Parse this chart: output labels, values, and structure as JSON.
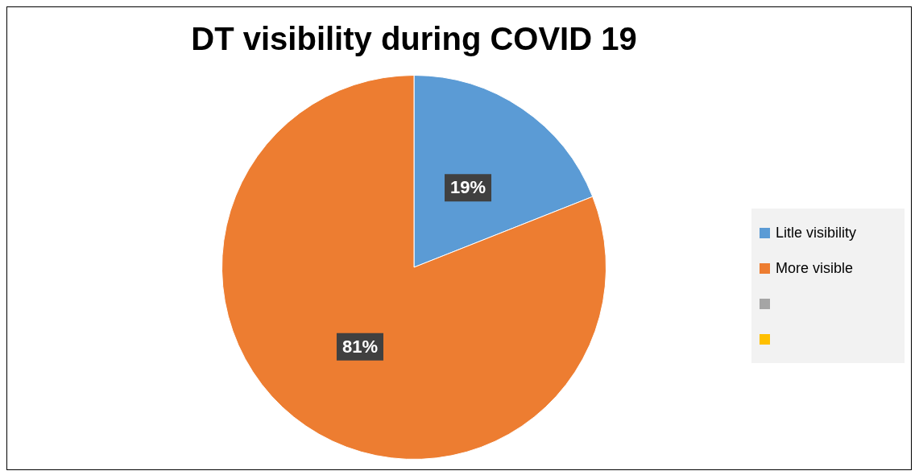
{
  "chart_data": {
    "type": "pie",
    "title": "DT visibility during COVID 19",
    "categories": [
      "Litle visibility",
      "More visible",
      null,
      null
    ],
    "values": [
      19,
      81,
      0,
      0
    ],
    "colors": [
      "#5b9bd5",
      "#ed7d31",
      "#a5a5a5",
      "#ffc000"
    ],
    "value_labels": [
      "19%",
      "81%",
      null,
      null
    ],
    "legend": "right"
  }
}
